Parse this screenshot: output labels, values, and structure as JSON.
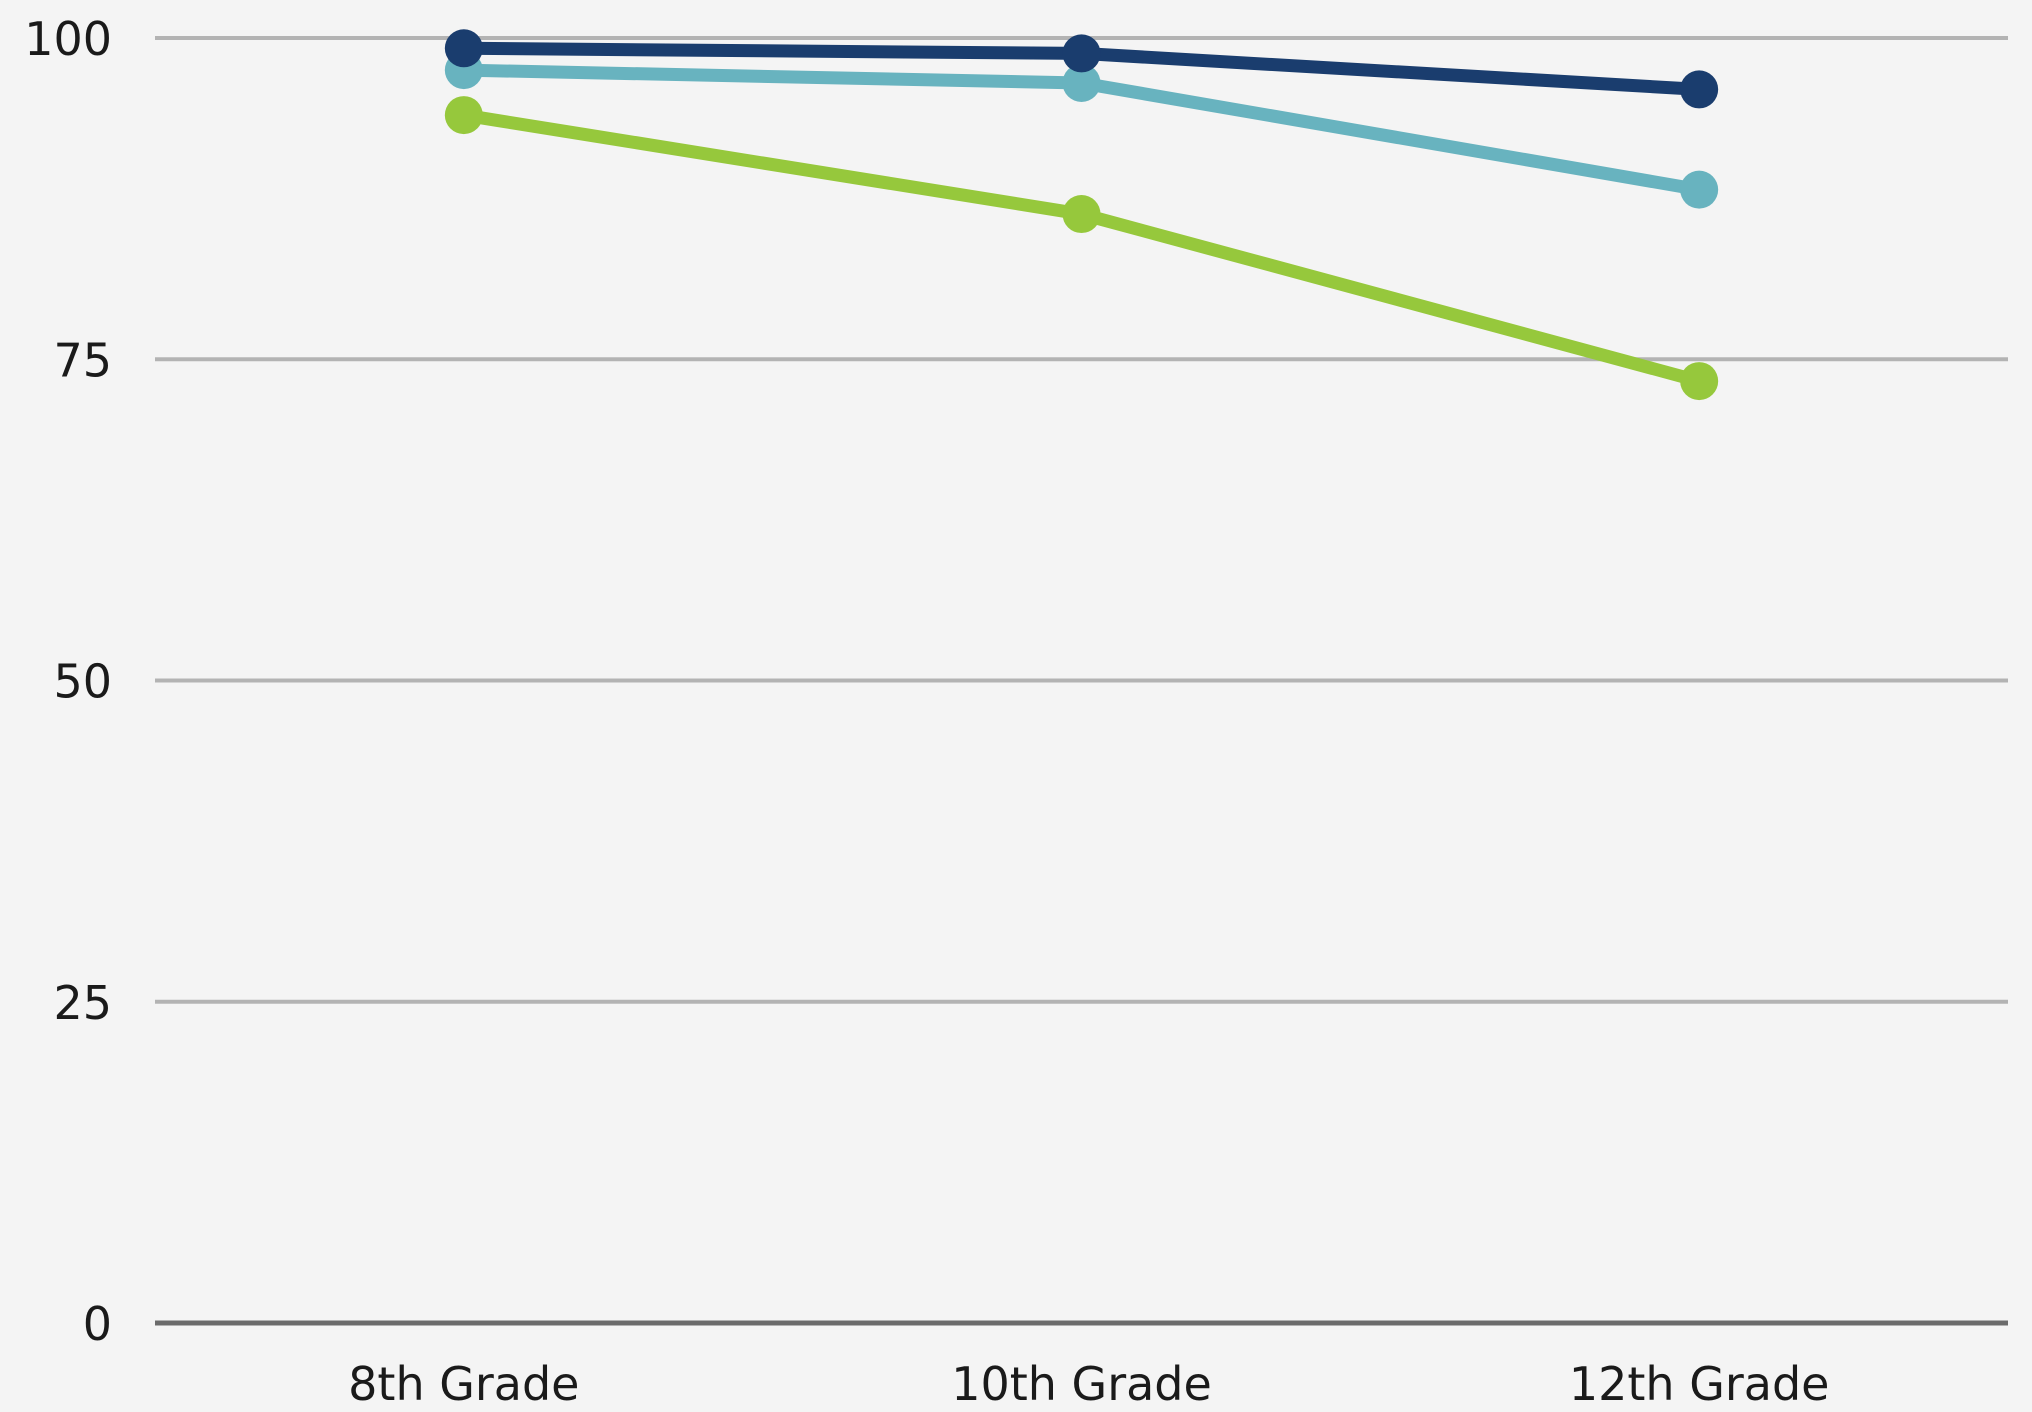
{
  "chart_data": {
    "type": "line",
    "title": "",
    "xlabel": "",
    "ylabel": "",
    "categories": [
      "8th Grade",
      "10th Grade",
      "12th Grade"
    ],
    "ylim": [
      0,
      100
    ],
    "yticks": [
      0,
      25,
      50,
      75,
      100
    ],
    "grid": true,
    "legend": "none",
    "series": [
      {
        "color": "#96c83c",
        "values": [
          94,
          86.3,
          73.3
        ]
      },
      {
        "color": "#68b3bf",
        "values": [
          97.5,
          96.5,
          88.2
        ]
      },
      {
        "color": "#1a3d6e",
        "values": [
          99.2,
          98.8,
          96
        ]
      }
    ]
  }
}
